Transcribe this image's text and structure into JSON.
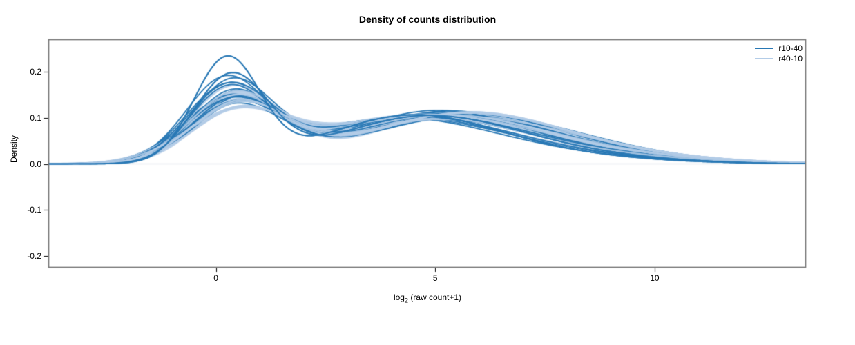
{
  "chart_data": {
    "type": "line",
    "subtype": "density-curves",
    "title": "Density of counts distribution",
    "xlabel": "log2 (raw count+1)",
    "xlabel_parts": {
      "base": "log",
      "sub": "2",
      "rest": " (raw count+1)"
    },
    "ylabel": "Density",
    "xlim": [
      -3.81,
      13.44
    ],
    "ylim": [
      -0.2239,
      0.2687
    ],
    "xticks": [
      0,
      5,
      10
    ],
    "yticks": [
      -0.2,
      -0.1,
      0.0,
      0.1,
      0.2
    ],
    "grid": false,
    "zero_baseline": {
      "y": 0,
      "color": "#e7eaed"
    },
    "colors": {
      "box": "#6f6f6f",
      "tick": "#000000",
      "text": "#000000",
      "background": "#ffffff",
      "series_dark": "#2878b5",
      "series_light": "#b3cce7"
    },
    "legend": {
      "position": "top-right",
      "entries": [
        {
          "label": "r10-40",
          "color": "#2878b5"
        },
        {
          "label": "r40-10",
          "color": "#b3cce7"
        }
      ]
    },
    "components_schema": "each curve = gaussian mixture; component = [weight, mean, sd]; density(x) = sum(weight * Normal(x; mean, sd))",
    "groups": [
      {
        "name": "r10-40",
        "color": "#2878b5",
        "line_width": 1.8,
        "opacity": 1.0,
        "curves": [
          [
            [
              0.42,
              0.25,
              0.75
            ],
            [
              0.42,
              4.3,
              1.9
            ],
            [
              0.16,
              6.5,
              2.5
            ]
          ],
          [
            [
              0.4,
              0.35,
              0.85
            ],
            [
              0.44,
              4.6,
              2.0
            ],
            [
              0.16,
              7.0,
              2.4
            ]
          ],
          [
            [
              0.38,
              0.3,
              0.95
            ],
            [
              0.46,
              4.2,
              2.1
            ],
            [
              0.16,
              6.8,
              2.5
            ]
          ],
          [
            [
              0.36,
              0.4,
              0.95
            ],
            [
              0.48,
              4.8,
              2.1
            ],
            [
              0.16,
              7.2,
              2.5
            ]
          ],
          [
            [
              0.35,
              0.3,
              0.9
            ],
            [
              0.49,
              4.4,
              2.2
            ],
            [
              0.16,
              7.5,
              2.6
            ]
          ],
          [
            [
              0.34,
              0.45,
              1.0
            ],
            [
              0.5,
              5.0,
              2.2
            ],
            [
              0.16,
              7.6,
              2.4
            ]
          ],
          [
            [
              0.33,
              0.35,
              1.05
            ],
            [
              0.51,
              4.5,
              2.3
            ],
            [
              0.16,
              7.0,
              2.7
            ]
          ],
          [
            [
              0.36,
              0.5,
              1.1
            ],
            [
              0.48,
              5.2,
              2.1
            ],
            [
              0.16,
              7.8,
              2.5
            ]
          ],
          [
            [
              0.32,
              0.3,
              1.0
            ],
            [
              0.52,
              4.3,
              2.4
            ],
            [
              0.16,
              7.3,
              2.6
            ]
          ],
          [
            [
              0.35,
              0.4,
              1.0
            ],
            [
              0.49,
              4.9,
              2.0
            ],
            [
              0.16,
              6.9,
              2.8
            ]
          ],
          [
            [
              0.33,
              0.55,
              1.05
            ],
            [
              0.51,
              5.3,
              2.2
            ],
            [
              0.16,
              7.4,
              2.5
            ]
          ],
          [
            [
              0.37,
              0.35,
              0.9
            ],
            [
              0.47,
              4.1,
              2.2
            ],
            [
              0.16,
              6.6,
              2.7
            ]
          ],
          [
            [
              0.34,
              0.45,
              1.1
            ],
            [
              0.5,
              5.5,
              2.3
            ],
            [
              0.16,
              7.8,
              2.4
            ]
          ],
          [
            [
              0.36,
              0.25,
              0.95
            ],
            [
              0.48,
              4.0,
              2.3
            ],
            [
              0.16,
              6.4,
              2.8
            ]
          ],
          [
            [
              0.32,
              0.5,
              1.0
            ],
            [
              0.52,
              5.1,
              2.1
            ],
            [
              0.16,
              7.7,
              2.6
            ]
          ],
          [
            [
              0.38,
              0.2,
              0.9
            ],
            [
              0.46,
              3.9,
              2.2
            ],
            [
              0.16,
              6.3,
              2.8
            ]
          ],
          [
            [
              0.33,
              0.4,
              1.1
            ],
            [
              0.51,
              4.7,
              2.3
            ],
            [
              0.16,
              7.2,
              2.5
            ]
          ],
          [
            [
              0.35,
              0.55,
              1.0
            ],
            [
              0.49,
              5.4,
              2.2
            ],
            [
              0.16,
              7.8,
              2.4
            ]
          ],
          [
            [
              0.34,
              0.3,
              1.05
            ],
            [
              0.5,
              4.4,
              2.4
            ],
            [
              0.16,
              6.8,
              2.7
            ]
          ],
          [
            [
              0.36,
              0.45,
              0.95
            ],
            [
              0.48,
              5.0,
              2.0
            ],
            [
              0.16,
              7.5,
              2.6
            ]
          ]
        ]
      },
      {
        "name": "r40-10",
        "color": "#b3cce7",
        "line_width": 2.3,
        "opacity": 0.88,
        "curves": [
          [
            [
              0.3,
              0.45,
              1.15
            ],
            [
              0.53,
              4.6,
              2.3
            ],
            [
              0.17,
              7.6,
              2.6
            ]
          ],
          [
            [
              0.33,
              0.5,
              1.05
            ],
            [
              0.5,
              4.9,
              2.2
            ],
            [
              0.17,
              7.7,
              2.5
            ]
          ],
          [
            [
              0.35,
              0.4,
              1.0
            ],
            [
              0.48,
              4.4,
              2.2
            ],
            [
              0.17,
              7.2,
              2.7
            ]
          ],
          [
            [
              0.34,
              0.55,
              1.1
            ],
            [
              0.49,
              5.2,
              2.3
            ],
            [
              0.17,
              7.8,
              2.4
            ]
          ],
          [
            [
              0.36,
              0.35,
              0.95
            ],
            [
              0.47,
              4.2,
              2.1
            ],
            [
              0.17,
              6.9,
              2.8
            ]
          ],
          [
            [
              0.32,
              0.6,
              1.1
            ],
            [
              0.51,
              5.4,
              2.2
            ],
            [
              0.17,
              7.9,
              2.5
            ]
          ],
          [
            [
              0.35,
              0.45,
              1.05
            ],
            [
              0.48,
              4.7,
              2.4
            ],
            [
              0.17,
              7.4,
              2.6
            ]
          ],
          [
            [
              0.33,
              0.4,
              1.0
            ],
            [
              0.5,
              4.5,
              2.2
            ],
            [
              0.17,
              7.1,
              2.7
            ]
          ],
          [
            [
              0.36,
              0.5,
              1.0
            ],
            [
              0.47,
              5.0,
              2.1
            ],
            [
              0.17,
              7.8,
              2.5
            ]
          ],
          [
            [
              0.31,
              0.35,
              1.1
            ],
            [
              0.52,
              4.3,
              2.4
            ],
            [
              0.17,
              7.0,
              2.8
            ]
          ],
          [
            [
              0.34,
              0.55,
              1.05
            ],
            [
              0.49,
              5.3,
              2.2
            ],
            [
              0.17,
              7.9,
              2.4
            ]
          ],
          [
            [
              0.35,
              0.3,
              0.95
            ],
            [
              0.48,
              4.1,
              2.3
            ],
            [
              0.17,
              6.7,
              2.8
            ]
          ],
          [
            [
              0.32,
              0.5,
              1.15
            ],
            [
              0.51,
              5.1,
              2.3
            ],
            [
              0.17,
              7.7,
              2.6
            ]
          ],
          [
            [
              0.36,
              0.45,
              1.0
            ],
            [
              0.47,
              4.8,
              2.2
            ],
            [
              0.17,
              7.5,
              2.5
            ]
          ],
          [
            [
              0.33,
              0.6,
              1.1
            ],
            [
              0.5,
              5.5,
              2.1
            ],
            [
              0.17,
              8.0,
              2.5
            ]
          ],
          [
            [
              0.34,
              0.4,
              1.05
            ],
            [
              0.49,
              4.6,
              2.3
            ],
            [
              0.17,
              7.3,
              2.6
            ]
          ],
          [
            [
              0.32,
              0.55,
              1.15
            ],
            [
              0.51,
              5.2,
              2.2
            ],
            [
              0.17,
              7.9,
              2.5
            ]
          ],
          [
            [
              0.35,
              0.5,
              1.0
            ],
            [
              0.48,
              4.9,
              2.4
            ],
            [
              0.17,
              7.6,
              2.7
            ]
          ],
          [
            [
              0.33,
              0.35,
              1.1
            ],
            [
              0.5,
              4.4,
              2.3
            ],
            [
              0.17,
              7.0,
              2.8
            ]
          ],
          [
            [
              0.34,
              0.6,
              1.0
            ],
            [
              0.49,
              5.5,
              2.1
            ],
            [
              0.17,
              8.0,
              2.4
            ]
          ]
        ]
      }
    ]
  }
}
